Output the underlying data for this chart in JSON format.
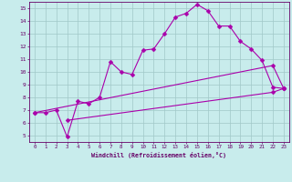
{
  "xlabel": "Windchill (Refroidissement éolien,°C)",
  "bg_color": "#c8ecec",
  "grid_color": "#a0c8c8",
  "line_color": "#aa00aa",
  "line1_x": [
    0,
    1,
    2,
    3,
    4,
    5,
    6,
    7,
    8,
    9,
    10,
    11,
    12,
    13,
    14,
    15,
    16,
    17,
    18,
    19,
    20,
    21,
    22,
    23
  ],
  "line1_y": [
    6.8,
    6.8,
    7.0,
    4.9,
    7.7,
    7.5,
    8.0,
    10.8,
    10.0,
    9.8,
    11.7,
    11.8,
    13.0,
    14.3,
    14.6,
    15.3,
    14.8,
    13.6,
    13.6,
    12.4,
    11.8,
    10.9,
    8.8,
    8.7
  ],
  "line2_x": [
    0,
    22,
    23
  ],
  "line2_y": [
    6.8,
    10.5,
    8.7
  ],
  "line3_x": [
    3,
    22,
    23
  ],
  "line3_y": [
    6.2,
    8.4,
    8.7
  ],
  "xlim": [
    -0.5,
    23.5
  ],
  "ylim": [
    4.5,
    15.5
  ],
  "xticks": [
    0,
    1,
    2,
    3,
    4,
    5,
    6,
    7,
    8,
    9,
    10,
    11,
    12,
    13,
    14,
    15,
    16,
    17,
    18,
    19,
    20,
    21,
    22,
    23
  ],
  "yticks": [
    5,
    6,
    7,
    8,
    9,
    10,
    11,
    12,
    13,
    14,
    15
  ]
}
